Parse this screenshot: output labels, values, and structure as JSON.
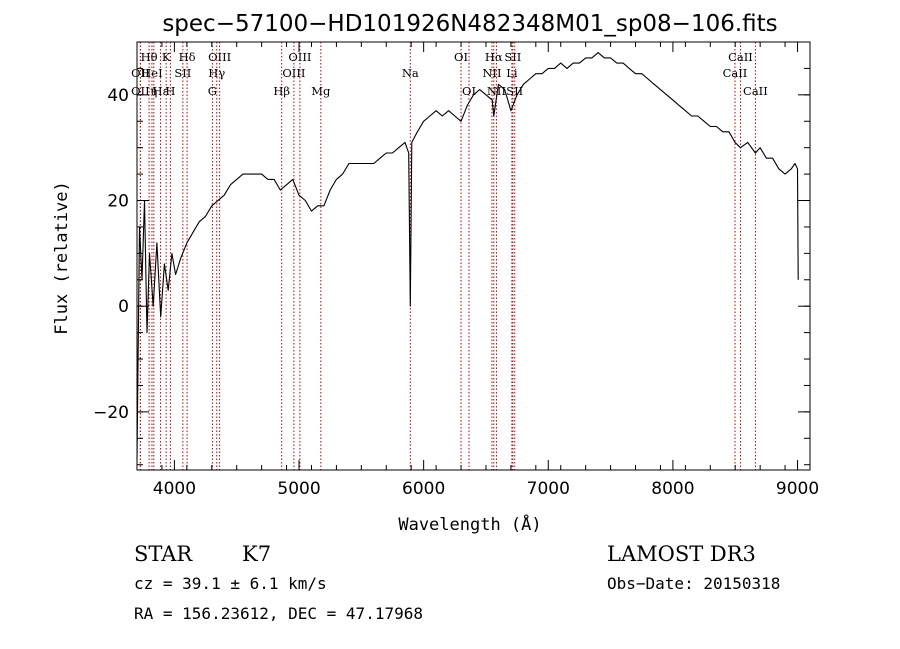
{
  "chart_data": {
    "type": "line",
    "title": "spec−57100−HD101926N482348M01_sp08−106.fits",
    "xlabel": "Wavelength (Å)",
    "ylabel": "Flux (relative)",
    "xlim": [
      3700,
      9100
    ],
    "ylim": [
      -31,
      50
    ],
    "xticks": [
      4000,
      5000,
      6000,
      7000,
      8000,
      9000
    ],
    "xtick_labels": [
      "4000",
      "5000",
      "6000",
      "7000",
      "8000",
      "9000"
    ],
    "yticks": [
      -20,
      0,
      20,
      40
    ],
    "ytick_labels": [
      "−20",
      "0",
      "20",
      "40"
    ],
    "x_minor_step": 200,
    "y_minor_step": 5,
    "series": [
      {
        "name": "spectrum",
        "x": [
          3700,
          3720,
          3740,
          3760,
          3780,
          3800,
          3830,
          3860,
          3890,
          3920,
          3950,
          3980,
          4010,
          4050,
          4100,
          4150,
          4200,
          4250,
          4300,
          4350,
          4400,
          4450,
          4500,
          4550,
          4600,
          4650,
          4700,
          4750,
          4800,
          4850,
          4900,
          4950,
          5000,
          5050,
          5100,
          5150,
          5200,
          5250,
          5300,
          5350,
          5400,
          5450,
          5500,
          5550,
          5600,
          5650,
          5700,
          5750,
          5800,
          5850,
          5880,
          5893,
          5905,
          5950,
          6000,
          6050,
          6100,
          6150,
          6200,
          6250,
          6300,
          6350,
          6400,
          6450,
          6500,
          6550,
          6563,
          6600,
          6650,
          6700,
          6750,
          6800,
          6850,
          6900,
          6950,
          7000,
          7050,
          7100,
          7150,
          7200,
          7250,
          7300,
          7350,
          7400,
          7450,
          7500,
          7550,
          7600,
          7650,
          7700,
          7750,
          7800,
          7850,
          7900,
          7950,
          8000,
          8050,
          8100,
          8150,
          8200,
          8250,
          8300,
          8350,
          8400,
          8450,
          8498,
          8542,
          8600,
          8662,
          8700,
          8750,
          8800,
          8850,
          8900,
          8950,
          8980,
          9000,
          9005
        ],
        "values": [
          -29,
          15,
          5,
          20,
          -5,
          10,
          0,
          12,
          -2,
          8,
          3,
          10,
          6,
          9,
          12,
          14,
          16,
          17,
          19,
          20,
          21,
          23,
          24,
          25,
          25,
          25,
          25,
          24,
          24,
          22,
          23,
          24,
          21,
          20,
          18,
          19,
          19,
          22,
          24,
          25,
          27,
          27,
          27,
          27,
          27,
          28,
          29,
          29,
          30,
          31,
          29,
          0,
          31,
          33,
          35,
          36,
          37,
          36,
          37,
          36,
          35,
          38,
          40,
          41,
          40,
          39,
          36,
          42,
          41,
          37,
          40,
          42,
          43,
          44,
          44,
          45,
          45,
          46,
          45,
          46,
          46,
          47,
          47,
          48,
          47,
          47,
          46,
          46,
          45,
          44,
          44,
          43,
          42,
          41,
          40,
          39,
          38,
          37,
          36,
          36,
          35,
          34,
          34,
          33,
          33,
          31,
          30,
          31,
          29,
          30,
          28,
          28,
          26,
          25,
          26,
          27,
          26,
          5
        ]
      }
    ],
    "line_markers": [
      {
        "label": "Hθ",
        "x": 3797,
        "row": 1
      },
      {
        "label": "K",
        "x": 3934,
        "row": 1
      },
      {
        "label": "Hδ",
        "x": 4102,
        "row": 1
      },
      {
        "label": "OII",
        "x": 3727,
        "row": 2
      },
      {
        "label": "HeI",
        "x": 3820,
        "row": 2
      },
      {
        "label": "SII",
        "x": 4068,
        "row": 2
      },
      {
        "label": "OII",
        "x": 3727,
        "row": 3
      },
      {
        "label": "Hε",
        "x": 3889,
        "row": 3
      },
      {
        "label": "η",
        "x": 3835,
        "row": 3
      },
      {
        "label": "H",
        "x": 3968,
        "row": 3
      },
      {
        "label": "OIII",
        "x": 4363,
        "row": 1
      },
      {
        "label": "Hγ",
        "x": 4340,
        "row": 2
      },
      {
        "label": "G",
        "x": 4305,
        "row": 3
      },
      {
        "label": "OIII",
        "x": 5007,
        "row": 1
      },
      {
        "label": "OIII",
        "x": 4959,
        "row": 2
      },
      {
        "label": "Hβ",
        "x": 4861,
        "row": 3
      },
      {
        "label": "Mg",
        "x": 5175,
        "row": 3
      },
      {
        "label": "Na",
        "x": 5893,
        "row": 2
      },
      {
        "label": "OI",
        "x": 6300,
        "row": 1
      },
      {
        "label": "OI",
        "x": 6364,
        "row": 3
      },
      {
        "label": "Hα",
        "x": 6563,
        "row": 1
      },
      {
        "label": "SII",
        "x": 6716,
        "row": 1
      },
      {
        "label": "NII",
        "x": 6548,
        "row": 2
      },
      {
        "label": "Li",
        "x": 6708,
        "row": 2
      },
      {
        "label": "NII",
        "x": 6584,
        "row": 3
      },
      {
        "label": "SII",
        "x": 6731,
        "row": 3
      },
      {
        "label": "CaII",
        "x": 8542,
        "row": 1
      },
      {
        "label": "CaII",
        "x": 8498,
        "row": 2
      },
      {
        "label": "CaII",
        "x": 8662,
        "row": 3
      }
    ]
  },
  "info": {
    "object_class": "STAR",
    "subclass": "K7",
    "survey": "LAMOST DR3",
    "redshift": "cz = 39.1 ± 6.1 km/s",
    "obs_date": "Obs−Date: 20150318",
    "coordinates": "RA = 156.23612, DEC =  47.17968"
  },
  "colors": {
    "line_marker": "#c00000",
    "spectrum": "#000000",
    "axes": "#000000"
  }
}
